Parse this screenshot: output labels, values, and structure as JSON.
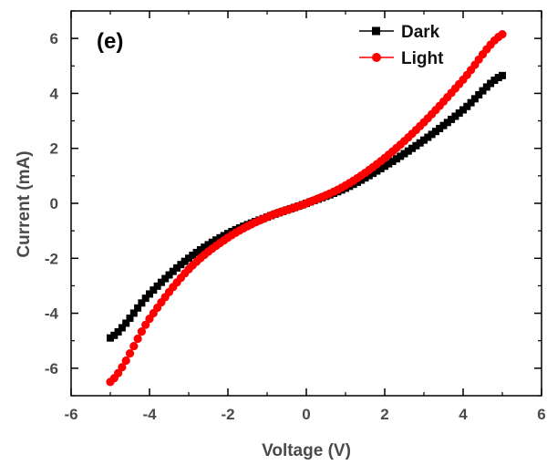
{
  "chart_data": {
    "type": "scatter",
    "title": "",
    "panel_label": "(e)",
    "xlabel": "Voltage (V)",
    "ylabel": "Current (mA)",
    "xlim": [
      -6,
      6
    ],
    "ylim": [
      -7,
      7
    ],
    "xticks": [
      -6,
      -4,
      -2,
      0,
      2,
      4,
      6
    ],
    "yticks": [
      -6,
      -4,
      -2,
      0,
      2,
      4,
      6
    ],
    "xtick_labels": [
      "-6",
      "-4",
      "-2",
      "0",
      "2",
      "4",
      "6"
    ],
    "ytick_labels": [
      "-6",
      "-4",
      "-2",
      "0",
      "2",
      "4",
      "6"
    ],
    "grid": false,
    "legend_position": "top-right",
    "series": [
      {
        "name": "Dark",
        "color": "#000000",
        "marker": "square",
        "x_range": [
          -5,
          5
        ],
        "y_start": -4.9,
        "y_end": 4.65,
        "points": [
          [
            -5,
            -4.9
          ],
          [
            -4,
            -3.3
          ],
          [
            -3,
            -2.0
          ],
          [
            -2,
            -1.1
          ],
          [
            -1,
            -0.5
          ],
          [
            0,
            0.0
          ],
          [
            1,
            0.55
          ],
          [
            2,
            1.35
          ],
          [
            3,
            2.3
          ],
          [
            4,
            3.4
          ],
          [
            5,
            4.65
          ]
        ]
      },
      {
        "name": "Light",
        "color": "#ff0000",
        "marker": "circle",
        "x_range": [
          -5,
          5
        ],
        "y_start": -6.5,
        "y_end": 6.15,
        "points": [
          [
            -5,
            -6.5
          ],
          [
            -4,
            -4.2
          ],
          [
            -3,
            -2.4
          ],
          [
            -2,
            -1.25
          ],
          [
            -1,
            -0.5
          ],
          [
            0,
            0.0
          ],
          [
            1,
            0.65
          ],
          [
            2,
            1.65
          ],
          [
            3,
            2.95
          ],
          [
            4,
            4.5
          ],
          [
            5,
            6.15
          ]
        ]
      }
    ]
  }
}
